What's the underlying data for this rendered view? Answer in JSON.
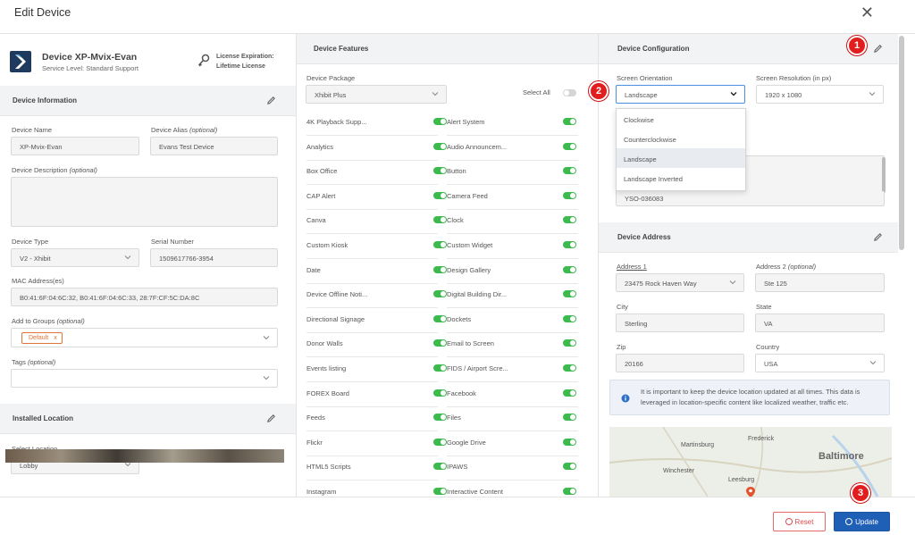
{
  "dialog": {
    "title": "Edit Device"
  },
  "device": {
    "name": "Device XP-Mvix-Evan",
    "service_level": "Service Level: Standard Support",
    "license_line1": "License Expiration:",
    "license_line2": "Lifetime License"
  },
  "device_info": {
    "title": "Device Information",
    "name_label": "Device Name",
    "name_value": "XP-Mvix-Evan",
    "alias_label": "Device Alias",
    "alias_opt": "(optional)",
    "alias_value": "Evans Test Device",
    "desc_label": "Device Description",
    "desc_opt": "(optional)",
    "type_label": "Device Type",
    "type_value": "V2 - Xhibit",
    "serial_label": "Serial Number",
    "serial_value": "1509617766-3954",
    "mac_label": "MAC Address(es)",
    "mac_value": "B0:41:6F:04:6C:32, B0:41:6F:04:6C:33, 28:7F:CF:5C:DA:8C",
    "groups_label": "Add to Groups",
    "groups_opt": "(optional)",
    "group_tag": "Default",
    "group_tag_remove": "x",
    "tags_label": "Tags",
    "tags_opt": "(optional)"
  },
  "installed_location": {
    "title": "Installed Location",
    "select_label": "Select Location",
    "select_value": "Lobby"
  },
  "features": {
    "title": "Device Features",
    "package_label": "Device Package",
    "package_value": "Xhibit Plus",
    "select_all": "Select All",
    "left": [
      "4K Playback Supp...",
      "Analytics",
      "Box Office",
      "CAP Alert",
      "Canva",
      "Custom Kiosk",
      "Date",
      "Device Offline Noti...",
      "Directional Signage",
      "Donor Walls",
      "Events listing",
      "FOREX Board",
      "Feeds",
      "Flickr",
      "HTML5 Scripts",
      "Instagram"
    ],
    "right": [
      "Alert System",
      "Audio Announcem...",
      "Button",
      "Camera Feed",
      "Clock",
      "Custom Widget",
      "Design Gallery",
      "Digital Building Dir...",
      "Dockets",
      "Email to Screen",
      "FIDS / Airport Scre...",
      "Facebook",
      "Files",
      "Google Drive",
      "IPAWS",
      "Interactive Content"
    ]
  },
  "config": {
    "title": "Device Configuration",
    "orientation_label": "Screen Orientation",
    "orientation_value": "Landscape",
    "resolution_label": "Screen Resolution (in px)",
    "resolution_value": "1920 x 1080",
    "orientation_options": [
      "Clockwise",
      "Counterclockwise",
      "Landscape",
      "Landscape Inverted"
    ],
    "selected_option": "Landscape",
    "partial_field": "YSO-036083"
  },
  "address": {
    "title": "Device Address",
    "addr1_label": "Address 1",
    "addr1_value": "23475 Rock Haven Way",
    "addr2_label": "Address 2",
    "addr2_opt": "(optional)",
    "addr2_value": "Ste 125",
    "city_label": "City",
    "city_value": "Sterling",
    "state_label": "State",
    "state_value": "VA",
    "zip_label": "Zip",
    "zip_value": "20166",
    "country_label": "Country",
    "country_value": "USA",
    "info_text": "It is important to keep the device location updated at all times. This data is leveraged in location-specific content like localized weather, traffic etc.",
    "map_labels": [
      "Frederick",
      "Martinsburg",
      "Baltimore",
      "Winchester",
      "Leesburg"
    ]
  },
  "badges": [
    "1",
    "2",
    "3"
  ],
  "footer": {
    "reset": "Reset",
    "update": "Update"
  },
  "colors": {
    "toggle_on": "#3dba4e",
    "primary": "#1f5fb5",
    "danger": "#e21d1d",
    "tag": "#e0743a"
  }
}
